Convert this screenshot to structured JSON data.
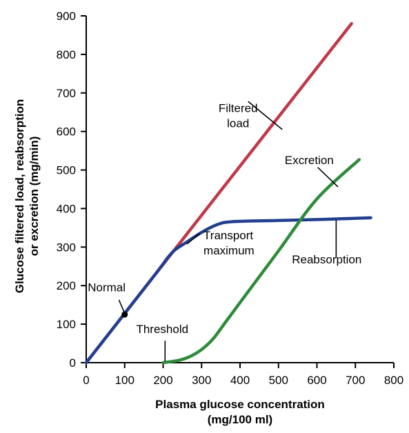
{
  "chart_data": {
    "type": "line",
    "xlabel": [
      "Plasma glucose concentration",
      "(mg/100 ml)"
    ],
    "ylabel": [
      "Glucose filtered load, reabsorption",
      "or excretion (mg/min)"
    ],
    "xlim": [
      0,
      800
    ],
    "ylim": [
      0,
      900
    ],
    "xticks": [
      "0",
      "100",
      "200",
      "300",
      "400",
      "500",
      "600",
      "700",
      "800"
    ],
    "yticks": [
      "0",
      "100",
      "200",
      "300",
      "400",
      "500",
      "600",
      "700",
      "800",
      "900"
    ],
    "grid": false,
    "legend": "none",
    "series": [
      {
        "key": "filtered",
        "color": "#c0394b",
        "points": [
          [
            0,
            0
          ],
          [
            690,
            880
          ]
        ]
      },
      {
        "key": "reabsorption",
        "color": "#223f8f",
        "points": [
          [
            0,
            0
          ],
          [
            180,
            230
          ],
          [
            210,
            270
          ],
          [
            230,
            292
          ],
          [
            260,
            312
          ],
          [
            300,
            338
          ],
          [
            340,
            358
          ],
          [
            380,
            366
          ],
          [
            500,
            369
          ],
          [
            620,
            372
          ],
          [
            740,
            376
          ]
        ]
      },
      {
        "key": "excretion",
        "color": "#2e8b3a",
        "points": [
          [
            200,
            0
          ],
          [
            240,
            6
          ],
          [
            270,
            16
          ],
          [
            300,
            34
          ],
          [
            330,
            62
          ],
          [
            360,
            102
          ],
          [
            400,
            156
          ],
          [
            500,
            290
          ],
          [
            600,
            425
          ],
          [
            710,
            527
          ]
        ]
      }
    ],
    "annotations": [
      {
        "key": "filtered",
        "lines": [
          "Filtered",
          "load"
        ],
        "at": [
          395,
          650
        ],
        "anchor": "middle",
        "pointer": [
          [
            421,
            678
          ],
          [
            510,
            605
          ]
        ]
      },
      {
        "key": "excretion",
        "lines": [
          "Excretion"
        ],
        "at": [
          580,
          515
        ],
        "anchor": "middle",
        "pointer": [
          [
            602,
            507
          ],
          [
            655,
            456
          ]
        ]
      },
      {
        "key": "transport",
        "lines": [
          "Transport",
          "maximum"
        ],
        "at": [
          305,
          320
        ],
        "anchor": "start",
        "pointer": [
          [
            295,
            335
          ],
          [
            262,
            308
          ]
        ]
      },
      {
        "key": "reabsorption",
        "lines": [
          "Reabsorption"
        ],
        "at": [
          535,
          258
        ],
        "anchor": "start",
        "pointer": [
          [
            650,
            272
          ],
          [
            650,
            370
          ]
        ]
      },
      {
        "key": "normal",
        "lines": [
          "Normal"
        ],
        "at": [
          4,
          185
        ],
        "anchor": "start",
        "pointer": [
          [
            85,
            163
          ],
          [
            100,
            128
          ]
        ]
      },
      {
        "key": "threshold",
        "lines": [
          "Threshold"
        ],
        "at": [
          130,
          77
        ],
        "anchor": "start",
        "pointer": [
          [
            205,
            57
          ],
          [
            205,
            4
          ]
        ]
      }
    ],
    "points": [
      {
        "key": "normal-point",
        "x": 100,
        "y": 125
      }
    ]
  }
}
